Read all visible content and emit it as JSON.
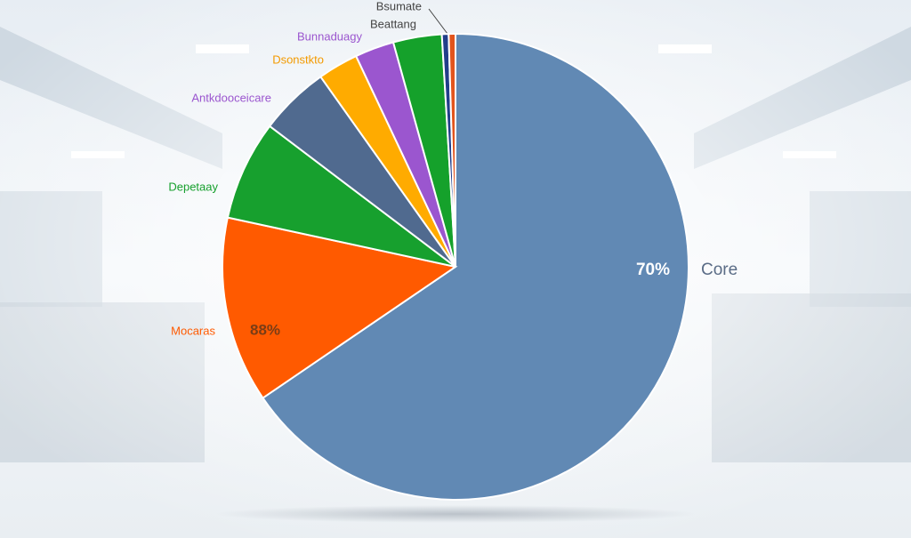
{
  "chart_data": {
    "type": "pie",
    "categories": [
      "Core",
      "Mocaras",
      "Depetaay",
      "Antkdooceicare",
      "Dsonstkto",
      "Bunnaduagy",
      null,
      "Bsumate",
      "Beattang"
    ],
    "values": [
      70,
      13.8,
      7.4,
      5.2,
      3,
      2.9,
      3.6,
      0.5,
      0.5
    ],
    "value_labels": [
      "70%",
      null,
      null,
      null,
      null,
      null,
      null,
      null,
      null
    ],
    "colors": [
      "#6189b4",
      "#ff5a00",
      "#17a02e",
      "#506a8f",
      "#ffab00",
      "#9b56cf",
      "#15a12b",
      "#213e8a",
      "#e2541c"
    ],
    "label_colors": [
      "#5a6c86",
      "#ff5a00",
      "#17a02e",
      "#9b56cf",
      "#f39a00",
      "#9b56cf",
      null,
      "#444444",
      "#444444"
    ],
    "annotations": [
      "88%"
    ]
  }
}
